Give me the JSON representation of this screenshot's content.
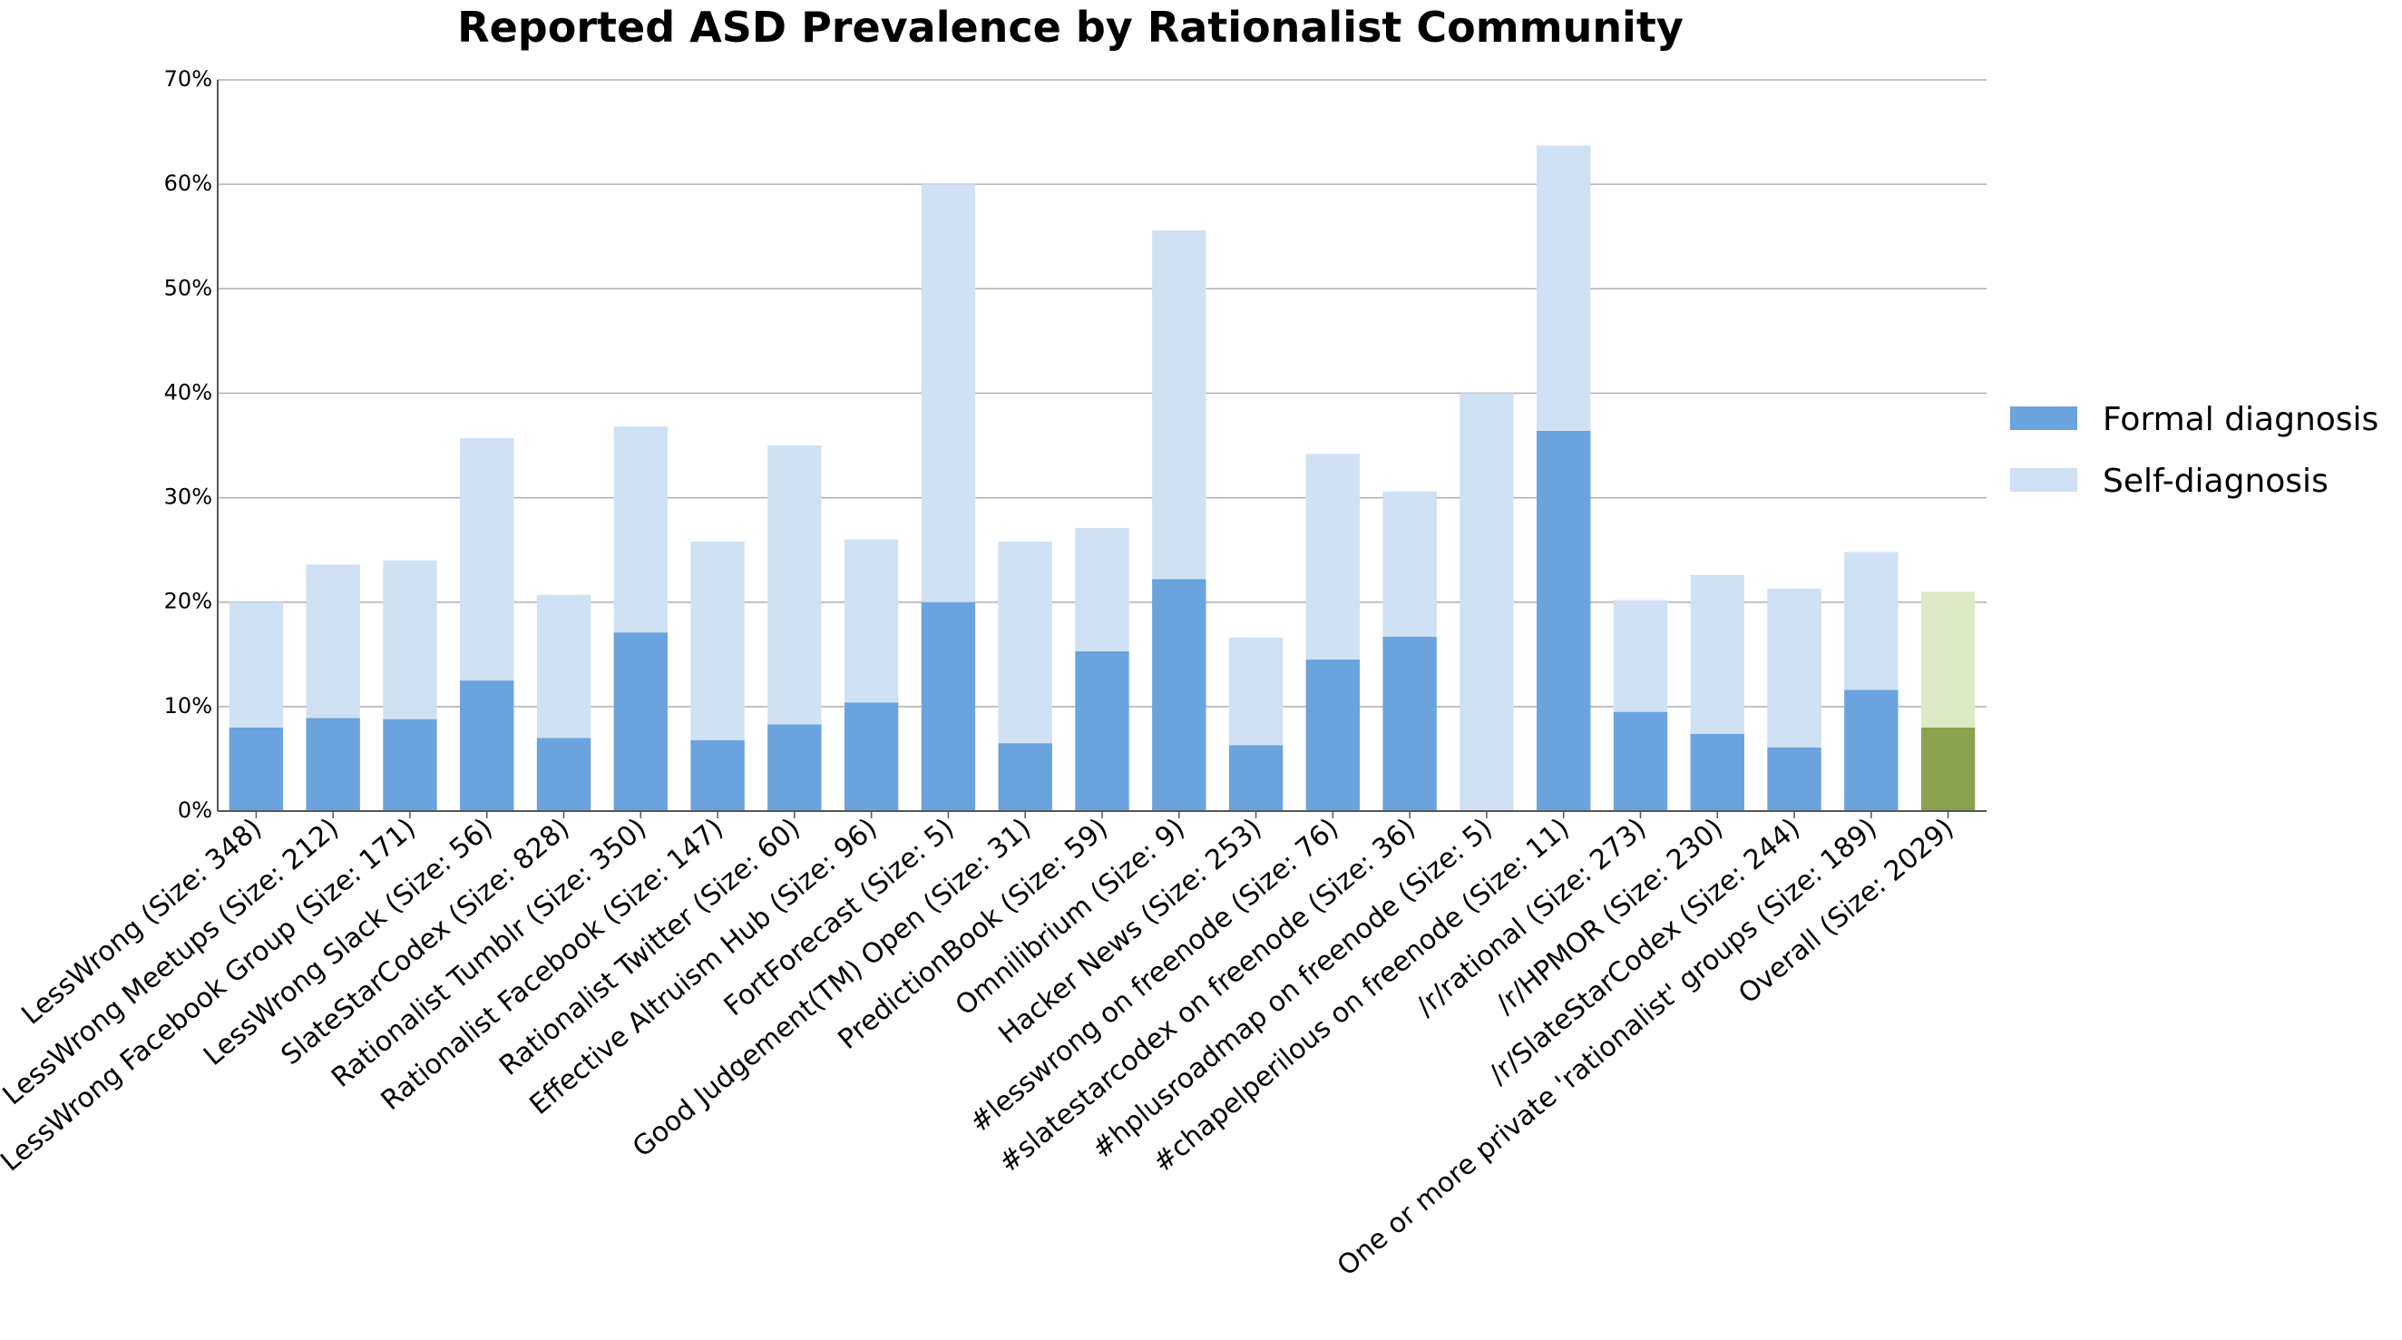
{
  "chart_data": {
    "type": "bar",
    "stacked": true,
    "title": "Reported ASD Prevalence by Rationalist Community",
    "xlabel": "",
    "ylabel": "",
    "ylim": [
      0,
      70
    ],
    "yticks": [
      0,
      10,
      20,
      30,
      40,
      50,
      60,
      70
    ],
    "ytick_labels": [
      "0%",
      "10%",
      "20%",
      "30%",
      "40%",
      "50%",
      "60%",
      "70%"
    ],
    "grid": "horizontal",
    "legend_position": "right",
    "categories": [
      "LessWrong (Size: 348)",
      "LessWrong Meetups (Size: 212)",
      "LessWrong Facebook Group (Size: 171)",
      "LessWrong Slack (Size: 56)",
      "SlateStarCodex (Size: 828)",
      "Rationalist Tumblr (Size: 350)",
      "Rationalist Facebook (Size: 147)",
      "Rationalist Twitter (Size: 60)",
      "Effective Altruism Hub (Size: 96)",
      "FortForecast (Size: 5)",
      "Good Judgement(TM) Open (Size: 31)",
      "PredictionBook (Size: 59)",
      "Omnilibrium (Size: 9)",
      "Hacker News (Size: 253)",
      "#lesswrong on freenode (Size: 76)",
      "#slatestarcodex on freenode (Size: 36)",
      "#hplusroadmap on freenode (Size: 5)",
      "#chapelperilous on freenode (Size: 11)",
      "/r/rational (Size: 273)",
      "/r/HPMOR (Size: 230)",
      "/r/SlateStarCodex (Size: 244)",
      "One or more private 'rationalist' groups (Size: 189)",
      "Overall (Size: 2029)"
    ],
    "series": [
      {
        "name": "Formal diagnosis",
        "color": "#6aa3dd",
        "highlight_color": "#8aa24d",
        "values": [
          8.0,
          8.9,
          8.8,
          12.5,
          7.0,
          17.1,
          6.8,
          8.3,
          10.4,
          20.0,
          6.5,
          15.3,
          22.2,
          6.3,
          14.5,
          16.7,
          0.0,
          36.4,
          9.5,
          7.4,
          6.1,
          11.6,
          8.0
        ]
      },
      {
        "name": "Self-diagnosis",
        "color": "#d0e1f4",
        "highlight_color": "#dde8c5",
        "values": [
          12.0,
          14.7,
          15.2,
          23.2,
          13.7,
          19.7,
          19.0,
          26.7,
          15.6,
          40.0,
          19.3,
          11.8,
          33.4,
          10.3,
          19.7,
          13.9,
          40.0,
          27.3,
          10.7,
          15.2,
          15.2,
          13.2,
          13.0
        ]
      }
    ],
    "highlight_index": 22
  }
}
